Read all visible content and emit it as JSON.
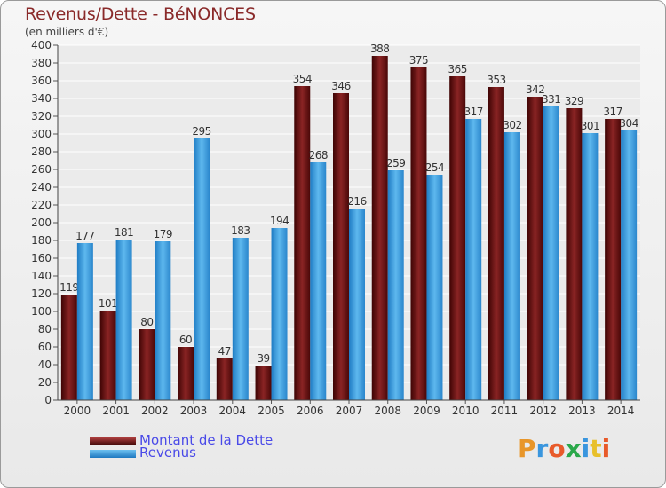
{
  "title": "Revenus/Dette - BéNONCES",
  "subtitle": "(en milliers d'€)",
  "logo": {
    "text": "Proxiti"
  },
  "legend": [
    {
      "label": "Montant de la Dette",
      "color": "#7a1a1a"
    },
    {
      "label": "Revenus",
      "color": "#3a96de"
    }
  ],
  "chart_data": {
    "type": "bar",
    "title": "Revenus/Dette - BéNONCES",
    "subtitle": "(en milliers d'€)",
    "categories": [
      "2000",
      "2001",
      "2002",
      "2003",
      "2004",
      "2005",
      "2006",
      "2007",
      "2008",
      "2009",
      "2010",
      "2011",
      "2012",
      "2013",
      "2014"
    ],
    "series": [
      {
        "name": "Montant de la Dette",
        "color": "#7a1a1a",
        "values": [
          119,
          101,
          80,
          60,
          47,
          39,
          354,
          346,
          388,
          375,
          365,
          353,
          342,
          329,
          317
        ]
      },
      {
        "name": "Revenus",
        "color": "#3a96de",
        "values": [
          177,
          181,
          179,
          295,
          183,
          194,
          268,
          216,
          259,
          254,
          317,
          302,
          331,
          301,
          304
        ]
      }
    ],
    "ylim": [
      0,
      400
    ],
    "ytick_step": 20,
    "grid": true,
    "legend_position": "bottom-left"
  }
}
